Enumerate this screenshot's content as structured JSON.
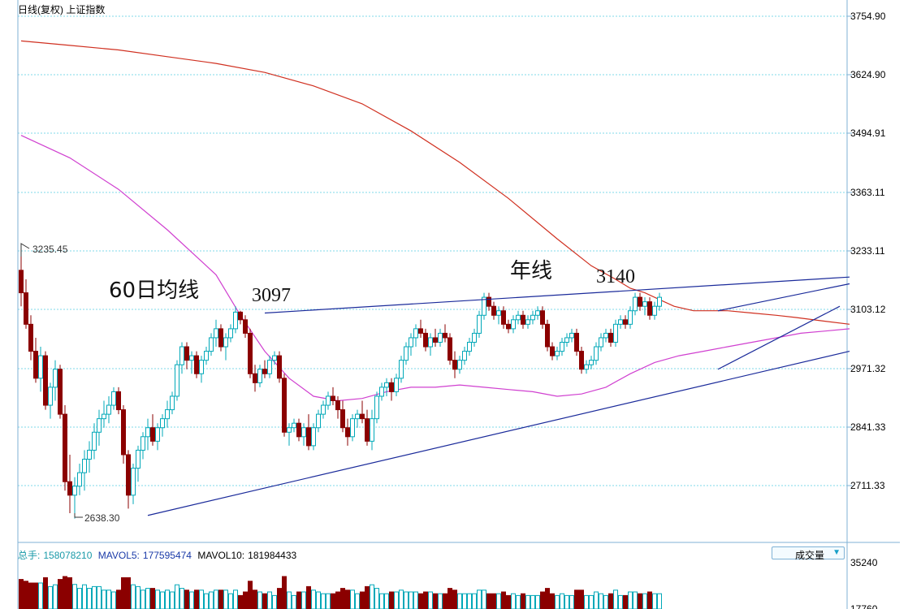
{
  "title": "日线(复权) 上证指数",
  "axis_price": [
    "3754.90",
    "3624.90",
    "3494.91",
    "3363.11",
    "3233.11",
    "3103.12",
    "2971.32",
    "2841.33",
    "2711.33"
  ],
  "axis_volume": [
    "35240",
    "17760"
  ],
  "marks": {
    "high": "3235.45",
    "low": "2638.30"
  },
  "annotations": {
    "ma60": "60日均线",
    "peak1": "3097",
    "year_line": "年线",
    "peak2": "3140"
  },
  "volume_panel": {
    "total_label": "总手:",
    "total_value": "158078210",
    "mavol5_label": "MAVOL5:",
    "mavol5_value": "177595474",
    "mavol10_label": "MAVOL10:",
    "mavol10_value": "181984433",
    "button_label": "成交量"
  },
  "colors": {
    "up": "#00a8b8",
    "down": "#8b0000",
    "ma_year": "#d03020",
    "ma60": "#d040d0",
    "trendline": "#1a2a9a",
    "grid": "#7fd8e8",
    "axis_text": "#000000"
  },
  "chart_data": {
    "type": "candlestick",
    "y_range": [
      2600,
      3770
    ],
    "candles": [
      [
        3190,
        3230,
        3110,
        3140
      ],
      [
        3140,
        3170,
        3060,
        3070
      ],
      [
        3070,
        3090,
        2990,
        3010
      ],
      [
        3010,
        3040,
        2940,
        2950
      ],
      [
        2950,
        3020,
        2920,
        3000
      ],
      [
        3000,
        3010,
        2880,
        2890
      ],
      [
        2890,
        2940,
        2860,
        2930
      ],
      [
        2930,
        2990,
        2900,
        2970
      ],
      [
        2970,
        2980,
        2860,
        2870
      ],
      [
        2870,
        2890,
        2700,
        2720
      ],
      [
        2720,
        2780,
        2650,
        2690
      ],
      [
        2690,
        2730,
        2638,
        2710
      ],
      [
        2710,
        2760,
        2690,
        2740
      ],
      [
        2740,
        2790,
        2700,
        2770
      ],
      [
        2770,
        2810,
        2740,
        2790
      ],
      [
        2790,
        2850,
        2770,
        2830
      ],
      [
        2830,
        2880,
        2800,
        2860
      ],
      [
        2860,
        2900,
        2840,
        2870
      ],
      [
        2870,
        2910,
        2850,
        2890
      ],
      [
        2890,
        2930,
        2880,
        2920
      ],
      [
        2920,
        2930,
        2870,
        2880
      ],
      [
        2880,
        2890,
        2760,
        2780
      ],
      [
        2780,
        2790,
        2660,
        2690
      ],
      [
        2690,
        2760,
        2670,
        2750
      ],
      [
        2750,
        2800,
        2720,
        2790
      ],
      [
        2790,
        2830,
        2770,
        2820
      ],
      [
        2820,
        2860,
        2790,
        2840
      ],
      [
        2840,
        2870,
        2800,
        2810
      ],
      [
        2810,
        2850,
        2790,
        2840
      ],
      [
        2840,
        2870,
        2820,
        2860
      ],
      [
        2860,
        2900,
        2840,
        2880
      ],
      [
        2880,
        2920,
        2870,
        2910
      ],
      [
        2910,
        2990,
        2900,
        2980
      ],
      [
        2980,
        3030,
        2960,
        3020
      ],
      [
        3020,
        3030,
        2970,
        2990
      ],
      [
        2990,
        3010,
        2960,
        3000
      ],
      [
        3000,
        3010,
        2950,
        2960
      ],
      [
        2960,
        3000,
        2940,
        2990
      ],
      [
        2990,
        3020,
        2980,
        3010
      ],
      [
        3010,
        3050,
        3000,
        3040
      ],
      [
        3040,
        3080,
        3020,
        3060
      ],
      [
        3060,
        3070,
        3010,
        3020
      ],
      [
        3020,
        3050,
        2990,
        3040
      ],
      [
        3040,
        3070,
        3030,
        3060
      ],
      [
        3060,
        3110,
        3050,
        3097
      ],
      [
        3097,
        3100,
        3070,
        3080
      ],
      [
        3080,
        3090,
        3040,
        3050
      ],
      [
        3050,
        3060,
        2950,
        2960
      ],
      [
        2960,
        2980,
        2920,
        2940
      ],
      [
        2940,
        2980,
        2930,
        2970
      ],
      [
        2970,
        2990,
        2950,
        2960
      ],
      [
        2960,
        3000,
        2950,
        2990
      ],
      [
        2990,
        3010,
        2980,
        3000
      ],
      [
        3000,
        3010,
        2940,
        2950
      ],
      [
        2950,
        2960,
        2820,
        2830
      ],
      [
        2830,
        2850,
        2800,
        2840
      ],
      [
        2840,
        2860,
        2830,
        2850
      ],
      [
        2850,
        2860,
        2810,
        2820
      ],
      [
        2820,
        2850,
        2800,
        2840
      ],
      [
        2840,
        2870,
        2790,
        2800
      ],
      [
        2800,
        2850,
        2790,
        2840
      ],
      [
        2840,
        2880,
        2830,
        2870
      ],
      [
        2870,
        2900,
        2860,
        2890
      ],
      [
        2890,
        2920,
        2880,
        2910
      ],
      [
        2910,
        2930,
        2890,
        2900
      ],
      [
        2900,
        2910,
        2860,
        2880
      ],
      [
        2880,
        2900,
        2830,
        2840
      ],
      [
        2840,
        2860,
        2800,
        2820
      ],
      [
        2820,
        2870,
        2810,
        2860
      ],
      [
        2860,
        2880,
        2840,
        2870
      ],
      [
        2870,
        2900,
        2850,
        2860
      ],
      [
        2860,
        2880,
        2800,
        2810
      ],
      [
        2810,
        2880,
        2790,
        2860
      ],
      [
        2860,
        2920,
        2850,
        2910
      ],
      [
        2910,
        2940,
        2900,
        2930
      ],
      [
        2930,
        2950,
        2910,
        2940
      ],
      [
        2940,
        2950,
        2900,
        2920
      ],
      [
        2920,
        2960,
        2910,
        2950
      ],
      [
        2950,
        3000,
        2940,
        2990
      ],
      [
        2990,
        3030,
        2980,
        3020
      ],
      [
        3020,
        3050,
        3000,
        3040
      ],
      [
        3040,
        3070,
        3020,
        3060
      ],
      [
        3060,
        3080,
        3040,
        3050
      ],
      [
        3050,
        3060,
        3010,
        3020
      ],
      [
        3020,
        3050,
        3000,
        3040
      ],
      [
        3040,
        3060,
        3020,
        3030
      ],
      [
        3030,
        3060,
        3020,
        3050
      ],
      [
        3050,
        3070,
        3030,
        3040
      ],
      [
        3040,
        3050,
        2980,
        2990
      ],
      [
        2990,
        3010,
        2950,
        2970
      ],
      [
        2970,
        3000,
        2960,
        2990
      ],
      [
        2990,
        3020,
        2980,
        3010
      ],
      [
        3010,
        3040,
        3000,
        3030
      ],
      [
        3030,
        3060,
        3020,
        3050
      ],
      [
        3050,
        3100,
        3040,
        3090
      ],
      [
        3090,
        3140,
        3080,
        3130
      ],
      [
        3130,
        3140,
        3100,
        3110
      ],
      [
        3110,
        3120,
        3080,
        3090
      ],
      [
        3090,
        3110,
        3070,
        3100
      ],
      [
        3100,
        3110,
        3060,
        3070
      ],
      [
        3070,
        3080,
        3050,
        3060
      ],
      [
        3060,
        3090,
        3050,
        3080
      ],
      [
        3080,
        3100,
        3070,
        3090
      ],
      [
        3090,
        3100,
        3060,
        3070
      ],
      [
        3070,
        3090,
        3060,
        3080
      ],
      [
        3080,
        3100,
        3070,
        3090
      ],
      [
        3090,
        3110,
        3080,
        3100
      ],
      [
        3100,
        3110,
        3060,
        3070
      ],
      [
        3070,
        3080,
        3010,
        3020
      ],
      [
        3020,
        3030,
        2990,
        3000
      ],
      [
        3000,
        3020,
        2990,
        3010
      ],
      [
        3010,
        3040,
        3000,
        3030
      ],
      [
        3030,
        3050,
        3020,
        3040
      ],
      [
        3040,
        3060,
        3030,
        3050
      ],
      [
        3050,
        3060,
        3000,
        3010
      ],
      [
        3010,
        3020,
        2960,
        2970
      ],
      [
        2970,
        2990,
        2960,
        2980
      ],
      [
        2980,
        3000,
        2970,
        2990
      ],
      [
        2990,
        3030,
        2980,
        3020
      ],
      [
        3020,
        3050,
        3010,
        3040
      ],
      [
        3040,
        3060,
        3030,
        3050
      ],
      [
        3050,
        3060,
        3020,
        3030
      ],
      [
        3030,
        3080,
        3020,
        3070
      ],
      [
        3070,
        3090,
        3060,
        3080
      ],
      [
        3080,
        3090,
        3060,
        3070
      ],
      [
        3070,
        3110,
        3060,
        3100
      ],
      [
        3100,
        3140,
        3090,
        3130
      ],
      [
        3130,
        3140,
        3100,
        3110
      ],
      [
        3110,
        3130,
        3090,
        3120
      ],
      [
        3120,
        3130,
        3080,
        3090
      ],
      [
        3090,
        3120,
        3080,
        3110
      ],
      [
        3110,
        3140,
        3100,
        3130
      ]
    ],
    "year_ma": [
      [
        0,
        3700
      ],
      [
        10,
        3690
      ],
      [
        20,
        3680
      ],
      [
        30,
        3665
      ],
      [
        40,
        3650
      ],
      [
        50,
        3630
      ],
      [
        60,
        3600
      ],
      [
        70,
        3560
      ],
      [
        80,
        3500
      ],
      [
        90,
        3430
      ],
      [
        100,
        3350
      ],
      [
        110,
        3260
      ],
      [
        117,
        3200
      ],
      [
        122,
        3170
      ],
      [
        125,
        3150
      ],
      [
        128,
        3140
      ],
      [
        131,
        3125
      ],
      [
        134,
        3110
      ],
      [
        138,
        3100
      ],
      [
        145,
        3100
      ],
      [
        150,
        3095
      ],
      [
        155,
        3090
      ],
      [
        159,
        3085
      ],
      [
        164,
        3078
      ],
      [
        170,
        3070
      ]
    ],
    "ma60": [
      [
        0,
        3490
      ],
      [
        10,
        3440
      ],
      [
        20,
        3370
      ],
      [
        30,
        3280
      ],
      [
        40,
        3180
      ],
      [
        45,
        3090
      ],
      [
        50,
        3010
      ],
      [
        55,
        2950
      ],
      [
        60,
        2910
      ],
      [
        65,
        2900
      ],
      [
        70,
        2905
      ],
      [
        75,
        2920
      ],
      [
        80,
        2930
      ],
      [
        85,
        2930
      ],
      [
        90,
        2935
      ],
      [
        95,
        2930
      ],
      [
        100,
        2925
      ],
      [
        105,
        2920
      ],
      [
        110,
        2910
      ],
      [
        115,
        2915
      ],
      [
        120,
        2930
      ],
      [
        125,
        2960
      ],
      [
        130,
        2985
      ],
      [
        135,
        3000
      ],
      [
        140,
        3010
      ],
      [
        145,
        3020
      ],
      [
        150,
        3030
      ],
      [
        155,
        3040
      ],
      [
        160,
        3050
      ],
      [
        165,
        3055
      ],
      [
        170,
        3060
      ]
    ],
    "trendlines": [
      [
        [
          26,
          2645
        ],
        [
          170,
          3010
        ]
      ],
      [
        [
          50,
          3095
        ],
        [
          170,
          3175
        ]
      ],
      [
        [
          143,
          3100
        ],
        [
          170,
          3160
        ]
      ],
      [
        [
          143,
          2970
        ],
        [
          168,
          3110
        ]
      ]
    ]
  }
}
